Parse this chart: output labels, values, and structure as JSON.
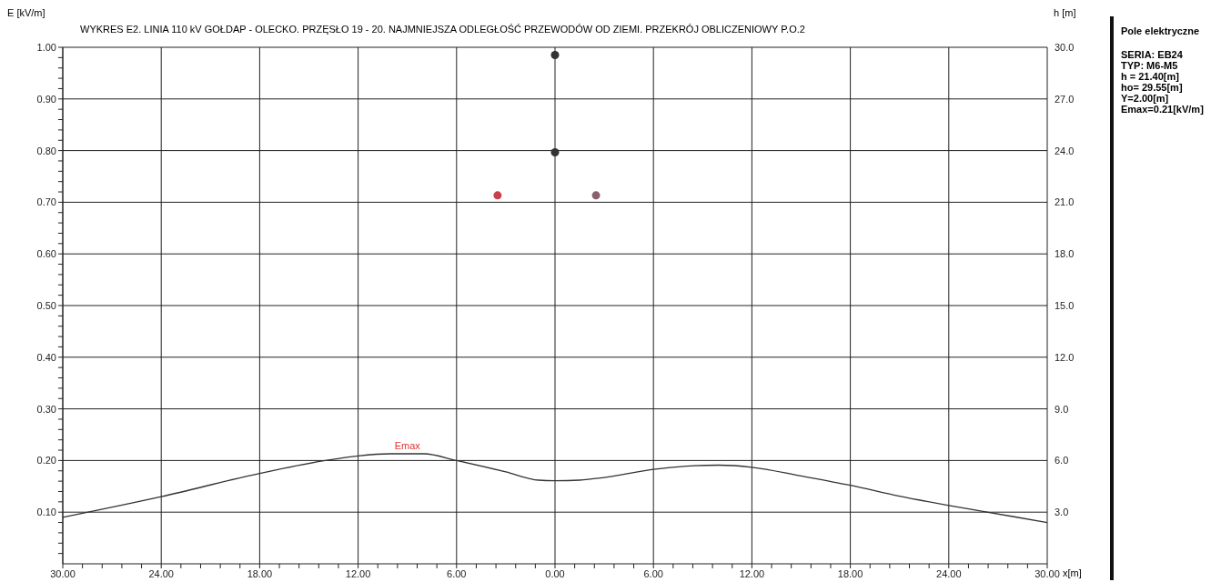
{
  "chart_data": {
    "type": "line",
    "title": "WYKRES E2. LINIA 110 kV GOŁDAP - OLECKO. PRZĘSŁO 19 - 20. NAJMNIEJSZA ODLEGŁOŚĆ PRZEWODÓW OD ZIEMI. PRZEKRÓJ OBLICZENIOWY P.O.2",
    "ylabel": "E [kV/m]",
    "y2label": "h [m]",
    "xlabel": "x[m]",
    "series": [
      {
        "color": "#333333",
        "x": [
          -30,
          -24,
          -18,
          -14,
          -12,
          -10,
          -8,
          -6,
          -3,
          -1,
          0,
          1.5,
          3,
          6,
          8,
          10,
          12,
          15,
          18,
          21,
          24,
          26,
          30
        ],
        "values": [
          0.09,
          0.13,
          0.175,
          0.2,
          0.209,
          0.213,
          0.213,
          0.2,
          0.178,
          0.162,
          0.161,
          0.162,
          0.167,
          0.183,
          0.189,
          0.191,
          0.187,
          0.17,
          0.152,
          0.131,
          0.113,
          0.102,
          0.08
        ]
      },
      {
        "type": "scatter",
        "marker": "circle",
        "axis": "y2",
        "x": [
          -3.5,
          0,
          0,
          2.5
        ],
        "values": [
          21.4,
          23.9,
          29.55,
          21.4
        ],
        "colors": [
          "#c8404c",
          "#333333",
          "#333333",
          "#8a6070"
        ]
      }
    ],
    "xlim": [
      -30,
      30
    ],
    "xticks": [
      {
        "value": -30,
        "label": "30.00"
      },
      {
        "value": -28.8,
        "label": null
      },
      {
        "value": -27.6,
        "label": null
      },
      {
        "value": -26.4,
        "label": null
      },
      {
        "value": -25.2,
        "label": null
      },
      {
        "value": -24,
        "label": "24.00"
      },
      {
        "value": -22.8,
        "label": null
      },
      {
        "value": -21.6,
        "label": null
      },
      {
        "value": -20.4,
        "label": null
      },
      {
        "value": -19.2,
        "label": null
      },
      {
        "value": -18,
        "label": "18.00"
      },
      {
        "value": -16.8,
        "label": null
      },
      {
        "value": -15.6,
        "label": null
      },
      {
        "value": -14.4,
        "label": null
      },
      {
        "value": -13.2,
        "label": null
      },
      {
        "value": -12,
        "label": "12.00"
      },
      {
        "value": -10.8,
        "label": null
      },
      {
        "value": -9.6,
        "label": null
      },
      {
        "value": -8.4,
        "label": null
      },
      {
        "value": -7.2,
        "label": null
      },
      {
        "value": -6,
        "label": "6.00"
      },
      {
        "value": -4.8,
        "label": null
      },
      {
        "value": -3.6,
        "label": null
      },
      {
        "value": -2.4,
        "label": null
      },
      {
        "value": -1.2,
        "label": null
      },
      {
        "value": 0,
        "label": "0.00"
      },
      {
        "value": 1.2,
        "label": null
      },
      {
        "value": 2.4,
        "label": null
      },
      {
        "value": 3.6,
        "label": null
      },
      {
        "value": 4.8,
        "label": null
      },
      {
        "value": 6,
        "label": "6.00"
      },
      {
        "value": 7.2,
        "label": null
      },
      {
        "value": 8.4,
        "label": null
      },
      {
        "value": 9.6,
        "label": null
      },
      {
        "value": 10.8,
        "label": null
      },
      {
        "value": 12,
        "label": "12.00"
      },
      {
        "value": 13.2,
        "label": null
      },
      {
        "value": 14.4,
        "label": null
      },
      {
        "value": 15.6,
        "label": null
      },
      {
        "value": 16.8,
        "label": null
      },
      {
        "value": 18,
        "label": "18.00"
      },
      {
        "value": 19.2,
        "label": null
      },
      {
        "value": 20.4,
        "label": null
      },
      {
        "value": 21.6,
        "label": null
      },
      {
        "value": 22.8,
        "label": null
      },
      {
        "value": 24,
        "label": "24.00"
      },
      {
        "value": 25.2,
        "label": null
      },
      {
        "value": 26.4,
        "label": null
      },
      {
        "value": 27.6,
        "label": null
      },
      {
        "value": 28.8,
        "label": null
      },
      {
        "value": 30,
        "label": "30.00"
      }
    ],
    "ylim": [
      0,
      1
    ],
    "yticks": [
      {
        "value": 0.02,
        "label": null
      },
      {
        "value": 0.04,
        "label": null
      },
      {
        "value": 0.06,
        "label": null
      },
      {
        "value": 0.08,
        "label": null
      },
      {
        "value": 0.1,
        "label": "0.10"
      },
      {
        "value": 0.12,
        "label": null
      },
      {
        "value": 0.14,
        "label": null
      },
      {
        "value": 0.16,
        "label": null
      },
      {
        "value": 0.18,
        "label": null
      },
      {
        "value": 0.2,
        "label": "0.20"
      },
      {
        "value": 0.22,
        "label": null
      },
      {
        "value": 0.24,
        "label": null
      },
      {
        "value": 0.26,
        "label": null
      },
      {
        "value": 0.28,
        "label": null
      },
      {
        "value": 0.3,
        "label": "0.30"
      },
      {
        "value": 0.32,
        "label": null
      },
      {
        "value": 0.34,
        "label": null
      },
      {
        "value": 0.36,
        "label": null
      },
      {
        "value": 0.38,
        "label": null
      },
      {
        "value": 0.4,
        "label": "0.40"
      },
      {
        "value": 0.42,
        "label": null
      },
      {
        "value": 0.44,
        "label": null
      },
      {
        "value": 0.46,
        "label": null
      },
      {
        "value": 0.48,
        "label": null
      },
      {
        "value": 0.5,
        "label": "0.50"
      },
      {
        "value": 0.52,
        "label": null
      },
      {
        "value": 0.54,
        "label": null
      },
      {
        "value": 0.56,
        "label": null
      },
      {
        "value": 0.58,
        "label": null
      },
      {
        "value": 0.6,
        "label": "0.60"
      },
      {
        "value": 0.62,
        "label": null
      },
      {
        "value": 0.64,
        "label": null
      },
      {
        "value": 0.66,
        "label": null
      },
      {
        "value": 0.68,
        "label": null
      },
      {
        "value": 0.7,
        "label": "0.70"
      },
      {
        "value": 0.72,
        "label": null
      },
      {
        "value": 0.74,
        "label": null
      },
      {
        "value": 0.76,
        "label": null
      },
      {
        "value": 0.78,
        "label": null
      },
      {
        "value": 0.8,
        "label": "0.80"
      },
      {
        "value": 0.82,
        "label": null
      },
      {
        "value": 0.84,
        "label": null
      },
      {
        "value": 0.86,
        "label": null
      },
      {
        "value": 0.88,
        "label": null
      },
      {
        "value": 0.9,
        "label": "0.90"
      },
      {
        "value": 0.92,
        "label": null
      },
      {
        "value": 0.94,
        "label": null
      },
      {
        "value": 0.96,
        "label": null
      },
      {
        "value": 0.98,
        "label": null
      },
      {
        "value": 1,
        "label": "1.00"
      }
    ],
    "y2lim": [
      0,
      30
    ],
    "y2ticks": [
      {
        "value": 3,
        "label": "3.0"
      },
      {
        "value": 6,
        "label": "6.0"
      },
      {
        "value": 9,
        "label": "9.0"
      },
      {
        "value": 12,
        "label": "12.0"
      },
      {
        "value": 15,
        "label": "15.0"
      },
      {
        "value": 18,
        "label": "18.0"
      },
      {
        "value": 21,
        "label": "21.0"
      },
      {
        "value": 24,
        "label": "24.0"
      },
      {
        "value": 27,
        "label": "27.0"
      },
      {
        "value": 30,
        "label": "30.0"
      }
    ],
    "grid": true,
    "annotations": [
      {
        "text": "Emax",
        "x": -9,
        "y": 0.213
      },
      "Pole elektryczne",
      "SERIA: EB24",
      "TYP: M6-M5",
      "h = 21.40[m]",
      "ho= 29.55[m]",
      "Y=2.00[m]",
      "Emax=0.21[kV/m]"
    ]
  }
}
